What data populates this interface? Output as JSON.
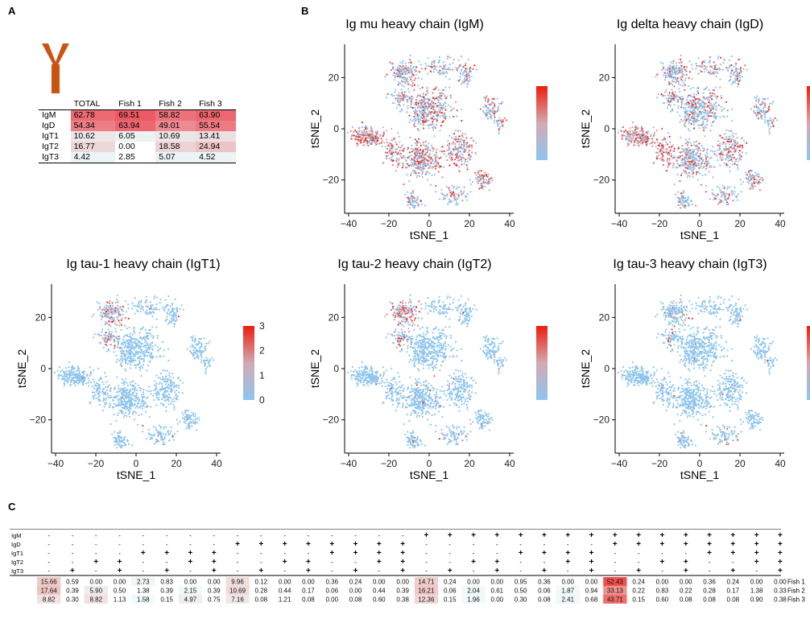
{
  "panel_labels": {
    "a": "A",
    "b": "B",
    "c": "C"
  },
  "antibody_icon": "antibody-y-icon",
  "colors": {
    "low": "#8ec5ee",
    "mid": "#e0a6a6",
    "high": "#ee1c0c",
    "icon": "#c95410",
    "heat_max": "#e8544f"
  },
  "table_a": {
    "headers": [
      "",
      "TOTAL",
      "Fish 1",
      "Fish 2",
      "Fish 3"
    ],
    "rows": [
      {
        "label": "IgM",
        "values": [
          "62.78",
          "69.51",
          "58.82",
          "63.90"
        ]
      },
      {
        "label": "IgD",
        "values": [
          "54.34",
          "63.94",
          "49.01",
          "55.54"
        ]
      },
      {
        "label": "IgT1",
        "values": [
          "10.62",
          "6.05",
          "10.69",
          "13.41"
        ]
      },
      {
        "label": "IgT2",
        "values": [
          "16.77",
          "0.00",
          "18.58",
          "24.94"
        ]
      },
      {
        "label": "IgT3",
        "values": [
          "4.42",
          "2.85",
          "5.07",
          "4.52"
        ]
      }
    ]
  },
  "chart_data": [
    {
      "type": "scatter",
      "title": "Ig mu heavy chain (IgM)",
      "xlabel": "tSNE_1",
      "ylabel": "tSNE_2",
      "xlim": [
        -42,
        42
      ],
      "ylim": [
        -33,
        33
      ],
      "xticks": [
        "-40",
        "-20",
        "0",
        "20",
        "40"
      ],
      "yticks": [
        "20",
        "0",
        "-20"
      ],
      "legend_ticks": [
        "5",
        "4",
        "3",
        "2",
        "1",
        "0"
      ],
      "legend_max": 5,
      "legend_placement": "right"
    },
    {
      "type": "scatter",
      "title": "Ig delta heavy chain (IgD)",
      "xlabel": "tSNE_1",
      "ylabel": "tSNE_2",
      "xlim": [
        -42,
        42
      ],
      "ylim": [
        -33,
        33
      ],
      "xticks": [
        "-40",
        "-20",
        "0",
        "20",
        "40"
      ],
      "yticks": [
        "20",
        "0",
        "-20"
      ],
      "legend_ticks": [],
      "legend_max": 3,
      "legend_placement": "right"
    },
    {
      "type": "scatter",
      "title": "Ig tau-1 heavy chain (IgT1)",
      "xlabel": "tSNE_1",
      "ylabel": "tSNE_2",
      "xlim": [
        -42,
        42
      ],
      "ylim": [
        -33,
        33
      ],
      "xticks": [
        "-40",
        "-20",
        "0",
        "20",
        "40"
      ],
      "yticks": [
        "20",
        "0",
        "-20"
      ],
      "legend_ticks": [
        "3",
        "2",
        "1",
        "0"
      ],
      "legend_max": 3,
      "legend_placement": "right"
    },
    {
      "type": "scatter",
      "title": "Ig tau-2 heavy chain (IgT2)",
      "xlabel": "tSNE_1",
      "ylabel": "tSNE_2",
      "xlim": [
        -42,
        42
      ],
      "ylim": [
        -33,
        33
      ],
      "xticks": [
        "-40",
        "-20",
        "0",
        "20",
        "40"
      ],
      "yticks": [
        "20",
        "0",
        "-20"
      ],
      "legend_ticks": [
        "5",
        "4",
        "3",
        "2",
        "1",
        "0"
      ],
      "legend_max": 5,
      "legend_placement": "right"
    },
    {
      "type": "scatter",
      "title": "Ig tau-3 heavy chain (IgT3)",
      "xlabel": "tSNE_1",
      "ylabel": "tSNE_2",
      "xlim": [
        -42,
        42
      ],
      "ylim": [
        -33,
        33
      ],
      "xticks": [
        "-40",
        "-20",
        "0",
        "20",
        "40"
      ],
      "yticks": [
        "20",
        "0",
        "-20"
      ],
      "legend_ticks": [],
      "legend_max": 3,
      "legend_placement": "right"
    },
    {
      "type": "heatmap",
      "row_labels": [
        "IgM",
        "IgD",
        "IgT1",
        "IgT2",
        "IgT3"
      ],
      "combos": [
        "-----",
        "----+",
        "---+-",
        "---++",
        "--+--",
        "--+-+",
        "--++-",
        "--+++",
        "-+---",
        "-+--+",
        "-+-+-",
        "-+-++",
        "-++--",
        "-++-+",
        "-+++-",
        "-++++",
        "+----",
        "+---+",
        "+--+-",
        "+--++",
        "+-+--",
        "+-+-+",
        "+-++-",
        "+-+++",
        "++---",
        "++--+",
        "++-+-",
        "++-++",
        "+++--",
        "+++-+",
        "++++-",
        "+++++"
      ],
      "series": [
        {
          "name": "Fish 1",
          "values": [
            "15.66",
            "0.59",
            "0.00",
            "0.00",
            "2.73",
            "0.83",
            "0.00",
            "0.00",
            "9.96",
            "0.12",
            "0.00",
            "0.00",
            "0.36",
            "0.24",
            "0.00",
            "0.00",
            "14.71",
            "0.24",
            "0.00",
            "0.00",
            "0.95",
            "0.36",
            "0.00",
            "0.00",
            "52.43",
            "0.24",
            "0.00",
            "0.00",
            "0.36",
            "0.24",
            "0.00",
            "0.00"
          ]
        },
        {
          "name": "Fish 2",
          "values": [
            "17.64",
            "0.39",
            "5.90",
            "0.50",
            "1.38",
            "0.39",
            "2.15",
            "0.39",
            "10.69",
            "0.28",
            "0.44",
            "0.17",
            "0.06",
            "0.00",
            "0.44",
            "0.39",
            "16.21",
            "0.06",
            "2.04",
            "0.61",
            "0.50",
            "0.06",
            "1.87",
            "0.94",
            "33.13",
            "0.22",
            "0.83",
            "0.22",
            "0.28",
            "0.17",
            "1.38",
            "0.33"
          ]
        },
        {
          "name": "Fish 3",
          "values": [
            "8.82",
            "0.30",
            "8.82",
            "1.13",
            "1.58",
            "0.15",
            "4.97",
            "0.75",
            "7.16",
            "0.08",
            "1.21",
            "0.08",
            "0.00",
            "0.08",
            "0.60",
            "0.38",
            "12.36",
            "0.15",
            "1.96",
            "0.00",
            "0.30",
            "0.08",
            "2.41",
            "0.68",
            "43.71",
            "0.15",
            "0.60",
            "0.08",
            "0.08",
            "0.08",
            "0.90",
            "0.38"
          ]
        }
      ]
    }
  ]
}
